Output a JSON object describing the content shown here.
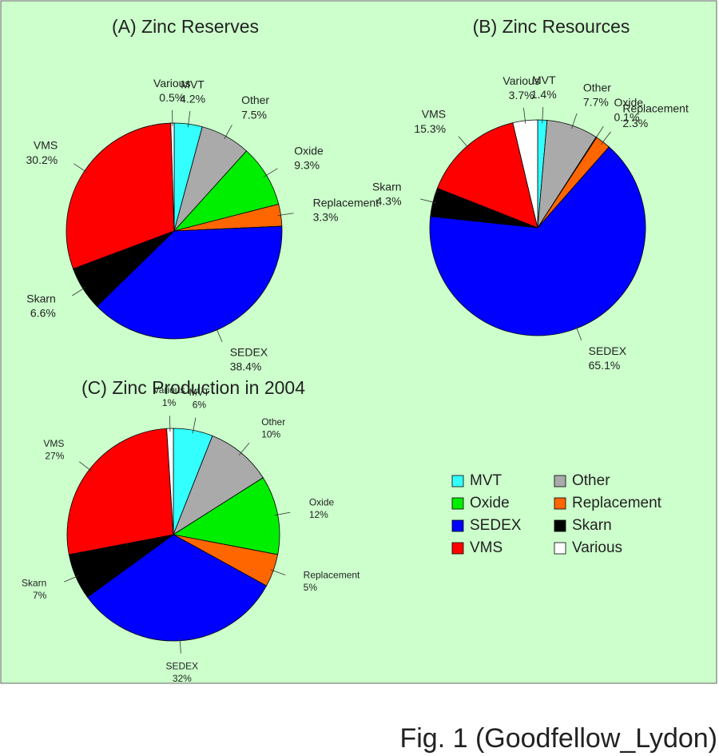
{
  "chart_data": [
    {
      "type": "pie",
      "title": "(A) Zinc Reserves",
      "categories": [
        "MVT",
        "Other",
        "Oxide",
        "Replacement",
        "SEDEX",
        "Skarn",
        "VMS",
        "Various"
      ],
      "values": [
        4.2,
        7.5,
        9.3,
        3.3,
        38.4,
        6.6,
        30.2,
        0.5
      ],
      "value_labels": [
        "4.2%",
        "7.5%",
        "9.3%",
        "3.3%",
        "38.4%",
        "6.6%",
        "30.2%",
        "0.5%"
      ],
      "colors": [
        "#33ffff",
        "#aaaaaa",
        "#00ee00",
        "#ff6600",
        "#0000ff",
        "#000000",
        "#ff0000",
        "#ffffff"
      ]
    },
    {
      "type": "pie",
      "title": "(B) Zinc Resources",
      "categories": [
        "MVT",
        "Other",
        "Oxide",
        "Replacement",
        "SEDEX",
        "Skarn",
        "VMS",
        "Various"
      ],
      "values": [
        1.4,
        7.7,
        0.1,
        2.3,
        65.1,
        4.3,
        15.3,
        3.7
      ],
      "value_labels": [
        "1.4%",
        "7.7%",
        "0.1%",
        "2.3%",
        "65.1%",
        "4.3%",
        "15.3%",
        "3.7%"
      ],
      "colors": [
        "#33ffff",
        "#aaaaaa",
        "#00ee00",
        "#ff6600",
        "#0000ff",
        "#000000",
        "#ff0000",
        "#ffffff"
      ]
    },
    {
      "type": "pie",
      "title": "(C) Zinc Production in 2004",
      "categories": [
        "MVT",
        "Other",
        "Oxide",
        "Replacement",
        "SEDEX",
        "Skarn",
        "VMS",
        "Various"
      ],
      "values": [
        6,
        10,
        12,
        5,
        32,
        7,
        27,
        1
      ],
      "value_labels": [
        "6%",
        "10%",
        "12%",
        "5%",
        "32%",
        "7%",
        "27%",
        "1%"
      ],
      "colors": [
        "#33ffff",
        "#aaaaaa",
        "#00ee00",
        "#ff6600",
        "#0000ff",
        "#000000",
        "#ff0000",
        "#ffffff"
      ]
    }
  ],
  "caption": "Fig. 1 (Goodfellow_Lydon)"
}
